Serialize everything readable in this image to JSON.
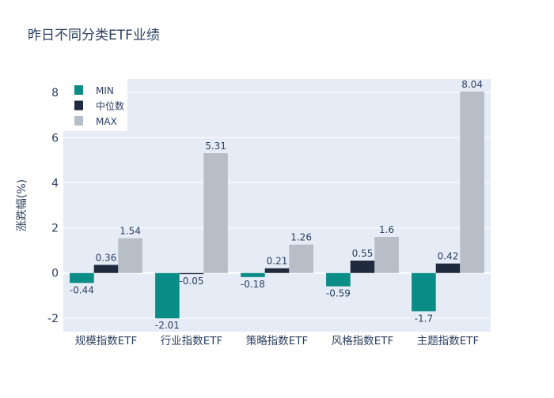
{
  "chart_data": {
    "type": "bar",
    "title": "昨日不同分类ETF业绩",
    "xlabel": "",
    "ylabel": "涨跌幅(%)",
    "ylim": [
      -2.6,
      8.6
    ],
    "yticks": [
      -2,
      0,
      2,
      4,
      6,
      8
    ],
    "grid": true,
    "legend_position": "top-left",
    "categories": [
      "规模指数ETF",
      "行业指数ETF",
      "策略指数ETF",
      "风格指数ETF",
      "主题指数ETF"
    ],
    "series": [
      {
        "name": "MIN",
        "color": "#0a8c87",
        "values": [
          -0.44,
          -2.01,
          -0.18,
          -0.59,
          -1.7
        ]
      },
      {
        "name": "中位数",
        "color": "#1f2a3e",
        "values": [
          0.36,
          -0.05,
          0.21,
          0.55,
          0.42
        ]
      },
      {
        "name": "MAX",
        "color": "#b8bec7",
        "values": [
          1.54,
          5.31,
          1.26,
          1.6,
          8.04
        ]
      }
    ]
  }
}
